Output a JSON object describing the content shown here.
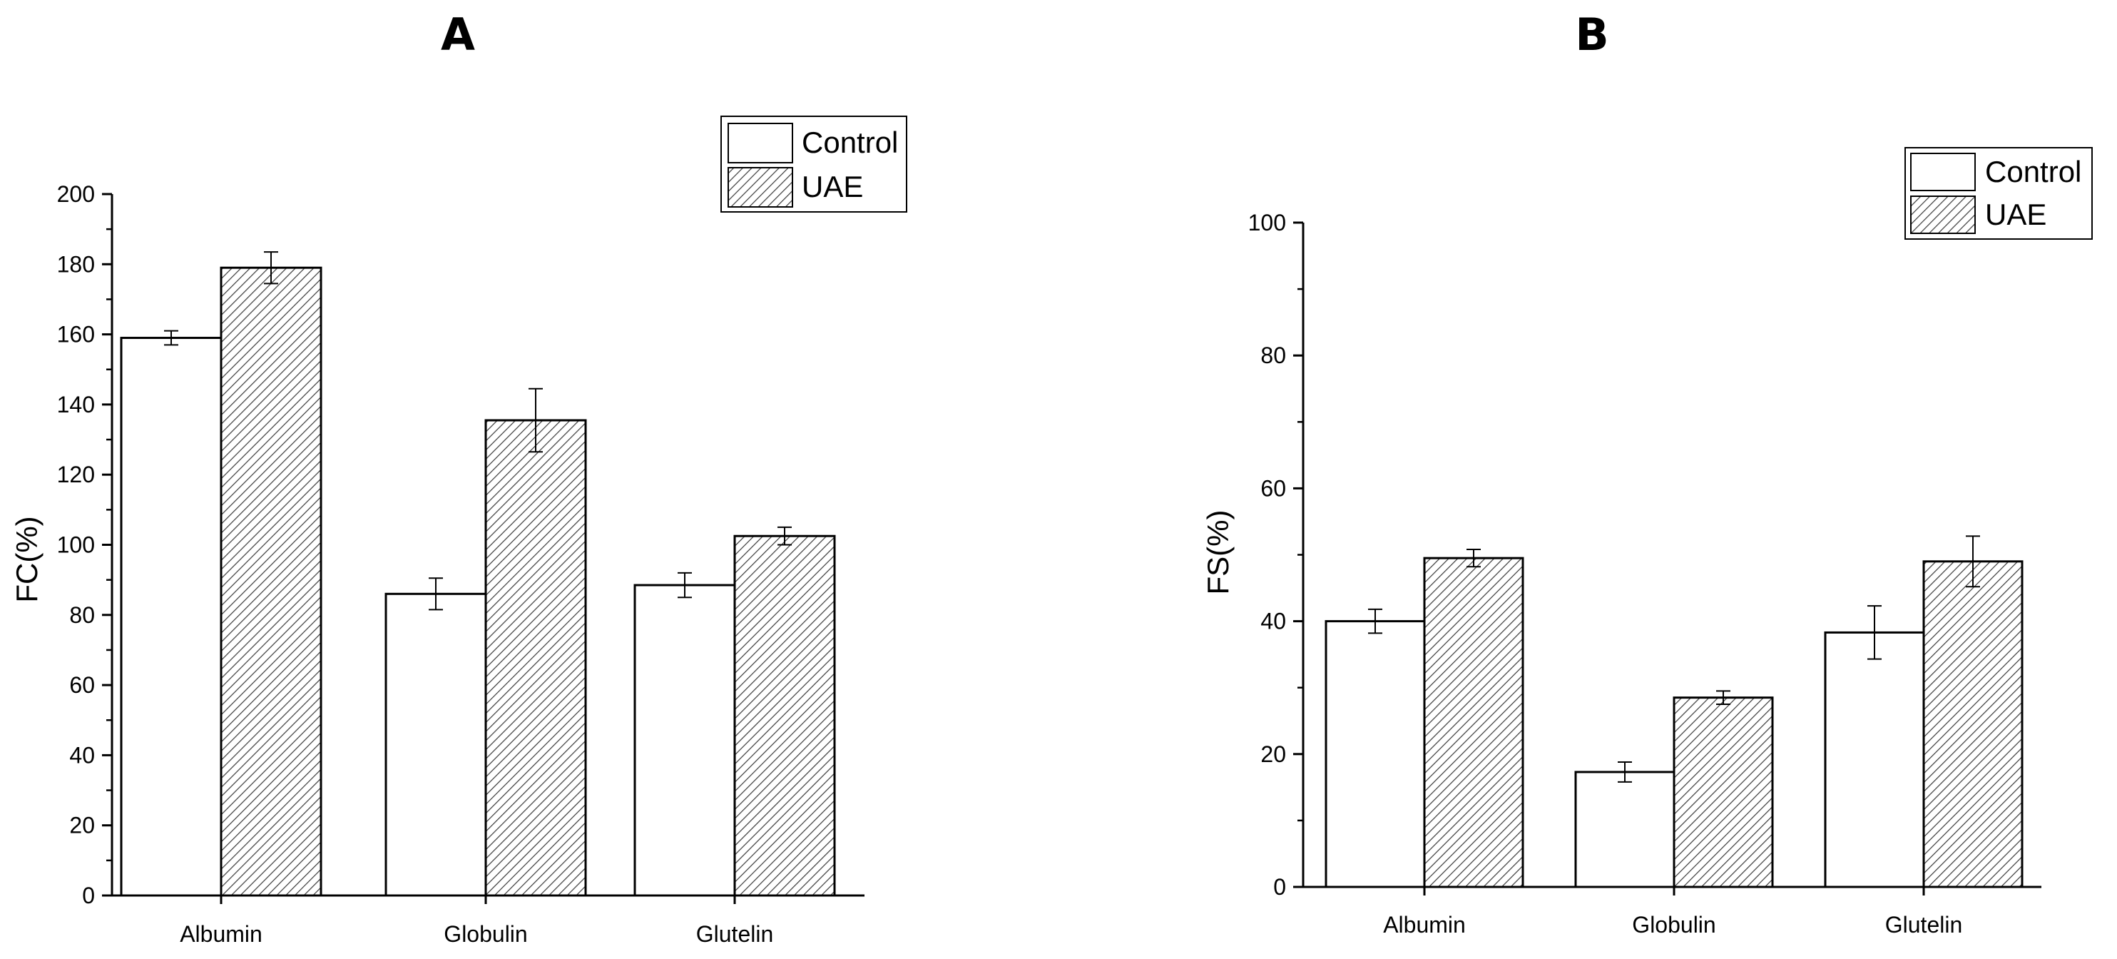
{
  "chart_data": [
    {
      "type": "bar",
      "panel_label": "A",
      "ylabel": "FC(%)",
      "xlabel": "",
      "categories": [
        "Albumin",
        "Globulin",
        "Glutelin"
      ],
      "ylim": [
        0,
        200
      ],
      "yticks": [
        "0",
        "20",
        "40",
        "60",
        "80",
        "100",
        "120",
        "140",
        "160",
        "180",
        "200"
      ],
      "legend": {
        "placement": "top-right",
        "entries": [
          "Control",
          "UAE"
        ]
      },
      "series": [
        {
          "name": "Control",
          "fill": "white",
          "values": [
            159,
            86,
            88.5
          ],
          "errors": [
            2,
            4.5,
            3.5
          ]
        },
        {
          "name": "UAE",
          "fill": "hatched",
          "values": [
            179,
            135.5,
            102.5
          ],
          "errors": [
            4.5,
            9,
            2.5
          ]
        }
      ]
    },
    {
      "type": "bar",
      "panel_label": "B",
      "ylabel": "FS(%)",
      "xlabel": "",
      "categories": [
        "Albumin",
        "Globulin",
        "Glutelin"
      ],
      "ylim": [
        0,
        100
      ],
      "yticks": [
        "0",
        "20",
        "40",
        "60",
        "80",
        "100"
      ],
      "legend": {
        "placement": "top-right",
        "entries": [
          "Control",
          "UAE"
        ]
      },
      "series": [
        {
          "name": "Control",
          "fill": "white",
          "values": [
            40,
            17.3,
            38.3
          ],
          "errors": [
            1.8,
            1.5,
            4
          ]
        },
        {
          "name": "UAE",
          "fill": "hatched",
          "values": [
            49.5,
            28.5,
            49
          ],
          "errors": [
            1.3,
            1,
            3.8
          ]
        }
      ]
    }
  ]
}
